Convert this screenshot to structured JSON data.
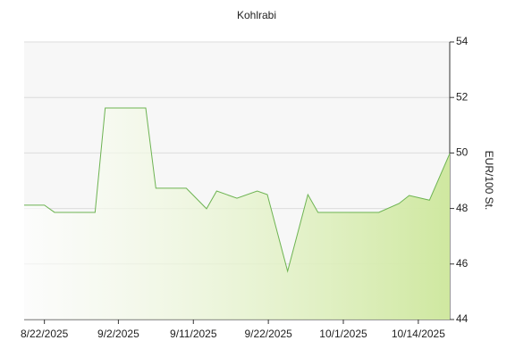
{
  "chart_data": {
    "type": "area",
    "title": "Kohlrabi",
    "y_label": "EUR/100 St.",
    "x": [
      0,
      2,
      3,
      7,
      8,
      12,
      13,
      16,
      18,
      19,
      21,
      23,
      24,
      26,
      28,
      29,
      35,
      37,
      38,
      40,
      42
    ],
    "series": [
      {
        "name": "Kohlrabi",
        "color": "#6db352",
        "values": [
          48.12,
          48.12,
          47.86,
          47.86,
          51.62,
          51.62,
          48.73,
          48.73,
          47.99,
          48.63,
          48.37,
          48.63,
          48.5,
          45.74,
          48.5,
          47.86,
          47.86,
          48.18,
          48.47,
          48.3,
          49.98
        ]
      }
    ],
    "xlim": [
      0,
      42
    ],
    "xticks": [
      {
        "value": 2,
        "label": "8/22/2025"
      },
      {
        "value": 9.3,
        "label": "9/2/2025"
      },
      {
        "value": 16.7,
        "label": "9/11/2025"
      },
      {
        "value": 24.1,
        "label": "9/22/2025"
      },
      {
        "value": 31.5,
        "label": "10/1/2025"
      },
      {
        "value": 38.9,
        "label": "10/14/2025"
      }
    ],
    "ylim": [
      44,
      54
    ],
    "yticks": [
      44,
      46,
      48,
      50,
      52,
      54
    ],
    "grid": true
  }
}
